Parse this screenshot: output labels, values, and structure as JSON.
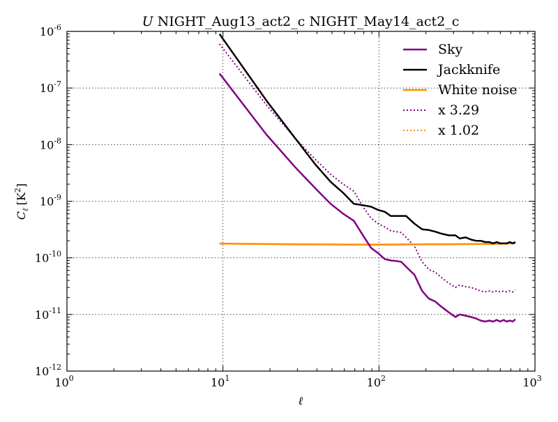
{
  "chart_data": {
    "type": "line",
    "title_italic": "U",
    "title": "NIGHT_Aug13_act2_c NIGHT_May14_act2_c",
    "xlabel": "ℓ",
    "ylabel_main": "C",
    "ylabel_sub": "ℓ",
    "ylabel_unit": "[K",
    "ylabel_unit_exp": "2",
    "ylabel_unit_close": "]",
    "xscale": "log",
    "yscale": "log",
    "xlim": [
      1,
      1000
    ],
    "ylim": [
      1e-12,
      1e-06
    ],
    "grid": true,
    "legend_position": "top-right",
    "x_ticks": [
      {
        "base": "10",
        "exp": "0",
        "value": 1
      },
      {
        "base": "10",
        "exp": "1",
        "value": 10
      },
      {
        "base": "10",
        "exp": "2",
        "value": 100
      },
      {
        "base": "10",
        "exp": "3",
        "value": 1000
      }
    ],
    "y_ticks": [
      {
        "base": "10",
        "exp": "-12",
        "value": 1e-12
      },
      {
        "base": "10",
        "exp": "-11",
        "value": 1e-11
      },
      {
        "base": "10",
        "exp": "-10",
        "value": 1e-10
      },
      {
        "base": "10",
        "exp": "-9",
        "value": 1e-09
      },
      {
        "base": "10",
        "exp": "-8",
        "value": 1e-08
      },
      {
        "base": "10",
        "exp": "-7",
        "value": 1e-07
      },
      {
        "base": "10",
        "exp": "-6",
        "value": 1e-06
      }
    ],
    "series": [
      {
        "name": "Sky",
        "color": "#800080",
        "style": "solid",
        "x": [
          9.5,
          19,
          29,
          39,
          49,
          59,
          69,
          79,
          89,
          99,
          109,
          119,
          129,
          139,
          149,
          169,
          189,
          209,
          229,
          249,
          279,
          309,
          329,
          359,
          389,
          419,
          449,
          479,
          509,
          539,
          569,
          599,
          629,
          659,
          689,
          719,
          749
        ],
        "y": [
          1.8e-07,
          1.5e-08,
          4e-09,
          1.7e-09,
          9e-10,
          6e-10,
          4.5e-10,
          2.5e-10,
          1.5e-10,
          1.2e-10,
          9.5e-11,
          9e-11,
          8.8e-11,
          8.5e-11,
          7e-11,
          5e-11,
          2.6e-11,
          1.9e-11,
          1.7e-11,
          1.4e-11,
          1.1e-11,
          9e-12,
          1e-11,
          9.5e-12,
          9e-12,
          8.5e-12,
          7.8e-12,
          7.5e-12,
          7.8e-12,
          7.5e-12,
          8e-12,
          7.5e-12,
          8e-12,
          7.5e-12,
          7.8e-12,
          7.5e-12,
          8.2e-12
        ]
      },
      {
        "name": "Jackknife",
        "color": "#000000",
        "style": "solid",
        "x": [
          9.5,
          19,
          29,
          39,
          49,
          59,
          69,
          79,
          89,
          99,
          109,
          119,
          129,
          149,
          169,
          189,
          209,
          229,
          249,
          279,
          309,
          329,
          359,
          389,
          419,
          449,
          479,
          509,
          539,
          569,
          599,
          629,
          659,
          689,
          719,
          749
        ],
        "y": [
          9e-07,
          6e-08,
          1.3e-08,
          4.5e-09,
          2.2e-09,
          1.4e-09,
          9e-10,
          8.5e-10,
          8e-10,
          7e-10,
          6.5e-10,
          5.5e-10,
          5.5e-10,
          5.5e-10,
          4e-10,
          3.2e-10,
          3.1e-10,
          2.9e-10,
          2.7e-10,
          2.5e-10,
          2.5e-10,
          2.2e-10,
          2.3e-10,
          2.1e-10,
          2e-10,
          2e-10,
          1.9e-10,
          1.9e-10,
          1.8e-10,
          1.9e-10,
          1.8e-10,
          1.8e-10,
          1.8e-10,
          1.9e-10,
          1.8e-10,
          1.9e-10
        ]
      },
      {
        "name": "White noise",
        "color": "#ff8c00",
        "style": "solid",
        "x": [
          9.5,
          19,
          29,
          49,
          69,
          89,
          109,
          149,
          209,
          309,
          409,
          509,
          609,
          749
        ],
        "y": [
          1.78e-10,
          1.75e-10,
          1.73e-10,
          1.72e-10,
          1.71e-10,
          1.71e-10,
          1.71e-10,
          1.72e-10,
          1.73e-10,
          1.74e-10,
          1.75e-10,
          1.76e-10,
          1.77e-10,
          1.8e-10
        ]
      },
      {
        "name": "x 3.29",
        "color": "#800080",
        "style": "dotted",
        "x": [
          9.5,
          19,
          29,
          39,
          49,
          59,
          69,
          79,
          89,
          99,
          109,
          119,
          129,
          139,
          149,
          169,
          189,
          209,
          229,
          249,
          279,
          309,
          329,
          359,
          389,
          419,
          449,
          479,
          509,
          539,
          569,
          599,
          629,
          659,
          689,
          719,
          749
        ],
        "y": [
          6e-07,
          5e-08,
          1.3e-08,
          5.5e-09,
          3e-09,
          2e-09,
          1.5e-09,
          8e-10,
          5e-10,
          4e-10,
          3.5e-10,
          3e-10,
          2.9e-10,
          2.8e-10,
          2.3e-10,
          1.6e-10,
          8.5e-11,
          6.2e-11,
          5.6e-11,
          4.6e-11,
          3.6e-11,
          3e-11,
          3.3e-11,
          3.1e-11,
          3e-11,
          2.8e-11,
          2.6e-11,
          2.5e-11,
          2.6e-11,
          2.5e-11,
          2.6e-11,
          2.5e-11,
          2.6e-11,
          2.5e-11,
          2.6e-11,
          2.5e-11,
          2.7e-11
        ]
      },
      {
        "name": "x 1.02",
        "color": "#ff8c00",
        "style": "dotted",
        "x": [
          9.5,
          19,
          29,
          49,
          69,
          89,
          109,
          149,
          209,
          309,
          409,
          509,
          609,
          749
        ],
        "y": [
          1.8e-10,
          1.77e-10,
          1.75e-10,
          1.74e-10,
          1.73e-10,
          1.73e-10,
          1.73e-10,
          1.74e-10,
          1.75e-10,
          1.76e-10,
          1.77e-10,
          1.78e-10,
          1.79e-10,
          1.82e-10
        ]
      }
    ]
  }
}
